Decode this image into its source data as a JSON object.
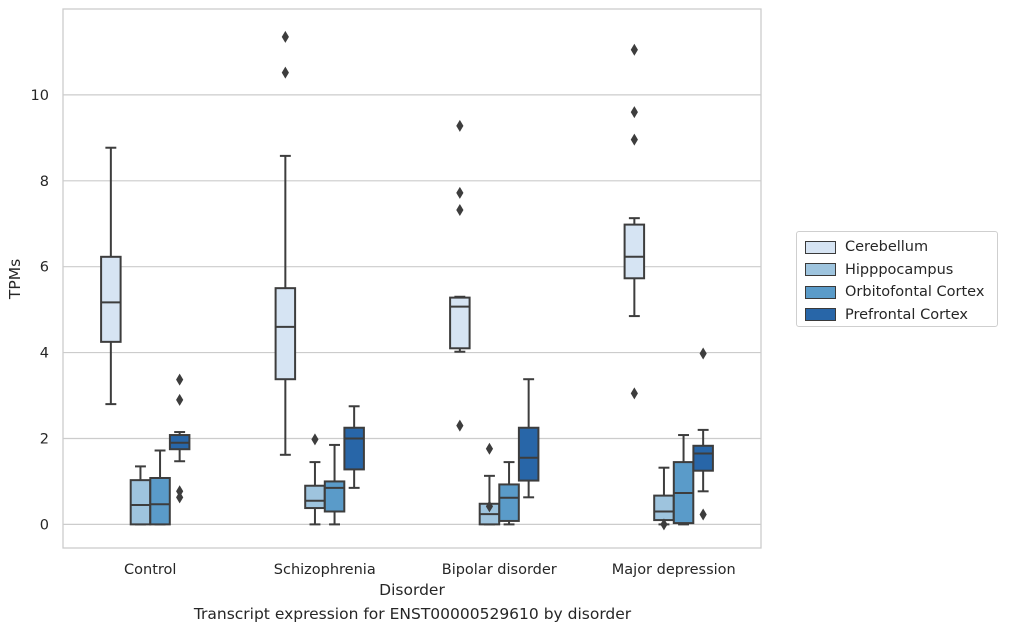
{
  "chart_data": {
    "type": "box",
    "title": "",
    "xlabel": "Disorder",
    "ylabel": "TPMs",
    "caption": "Transcript expression for ENST00000529610 by disorder",
    "categories": [
      "Control",
      "Schizophrenia",
      "Bipolar disorder",
      "Major depression"
    ],
    "ylim": [
      -0.55,
      12.0
    ],
    "yticks": [
      0,
      2,
      4,
      6,
      8,
      10
    ],
    "grid": "horizontal",
    "legend_position": "right",
    "series": [
      {
        "name": "Cerebellum",
        "color": "#d6e4f3",
        "boxes": [
          {
            "q1": 4.25,
            "median": 5.17,
            "q3": 6.23,
            "whisker_low": 2.8,
            "whisker_high": 8.77,
            "outliers": []
          },
          {
            "q1": 3.38,
            "median": 4.6,
            "q3": 5.5,
            "whisker_low": 1.62,
            "whisker_high": 8.58,
            "outliers": [
              10.52,
              11.35
            ]
          },
          {
            "q1": 4.1,
            "median": 5.07,
            "q3": 5.28,
            "whisker_low": 4.02,
            "whisker_high": 5.3,
            "outliers": [
              2.3,
              7.32,
              7.72,
              9.28
            ]
          },
          {
            "q1": 5.73,
            "median": 6.23,
            "q3": 6.98,
            "whisker_low": 4.85,
            "whisker_high": 7.13,
            "outliers": [
              3.05,
              8.96,
              9.6,
              11.05
            ]
          }
        ]
      },
      {
        "name": "Hipppocampus",
        "color": "#9ec4de",
        "boxes": [
          {
            "q1": 0.0,
            "median": 0.45,
            "q3": 1.03,
            "whisker_low": 0.0,
            "whisker_high": 1.35,
            "outliers": []
          },
          {
            "q1": 0.38,
            "median": 0.55,
            "q3": 0.9,
            "whisker_low": 0.0,
            "whisker_high": 1.45,
            "outliers": [
              1.98
            ]
          },
          {
            "q1": 0.0,
            "median": 0.24,
            "q3": 0.48,
            "whisker_low": 0.0,
            "whisker_high": 1.13,
            "outliers": [
              0.42,
              1.76
            ]
          },
          {
            "q1": 0.1,
            "median": 0.3,
            "q3": 0.67,
            "whisker_low": 0.0,
            "whisker_high": 1.32,
            "outliers": [
              0.0
            ]
          }
        ]
      },
      {
        "name": "Orbitofontal Cortex",
        "color": "#5a9bc9",
        "boxes": [
          {
            "q1": 0.0,
            "median": 0.47,
            "q3": 1.08,
            "whisker_low": 0.0,
            "whisker_high": 1.72,
            "outliers": []
          },
          {
            "q1": 0.3,
            "median": 0.85,
            "q3": 1.0,
            "whisker_low": 0.0,
            "whisker_high": 1.85,
            "outliers": []
          },
          {
            "q1": 0.08,
            "median": 0.62,
            "q3": 0.93,
            "whisker_low": 0.0,
            "whisker_high": 1.45,
            "outliers": []
          },
          {
            "q1": 0.03,
            "median": 0.73,
            "q3": 1.45,
            "whisker_low": 0.0,
            "whisker_high": 2.08,
            "outliers": []
          }
        ]
      },
      {
        "name": "Prefrontal Cortex",
        "color": "#2866a8",
        "boxes": [
          {
            "q1": 1.75,
            "median": 1.9,
            "q3": 2.08,
            "whisker_low": 1.47,
            "whisker_high": 2.15,
            "outliers": [
              0.63,
              0.77,
              2.9,
              3.37
            ]
          },
          {
            "q1": 1.28,
            "median": 2.0,
            "q3": 2.25,
            "whisker_low": 0.85,
            "whisker_high": 2.75,
            "outliers": []
          },
          {
            "q1": 1.02,
            "median": 1.55,
            "q3": 2.25,
            "whisker_low": 0.63,
            "whisker_high": 3.38,
            "outliers": []
          },
          {
            "q1": 1.25,
            "median": 1.65,
            "q3": 1.83,
            "whisker_low": 0.77,
            "whisker_high": 2.2,
            "outliers": [
              0.23,
              3.98
            ]
          }
        ]
      }
    ]
  }
}
